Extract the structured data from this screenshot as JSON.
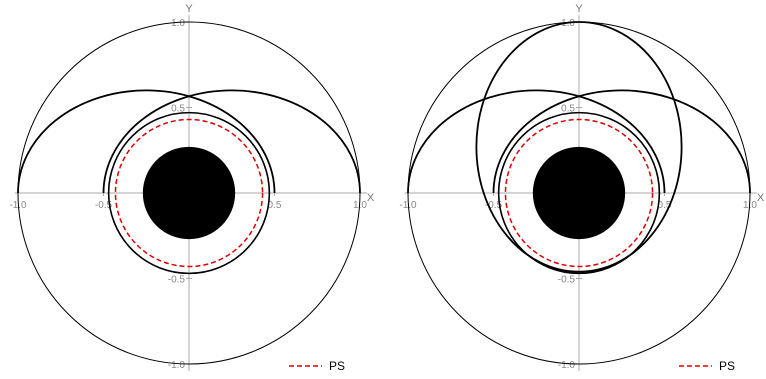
{
  "panels": [
    {
      "id": "left",
      "x_axis_label": "X",
      "y_axis_label": "Y",
      "x_ticks": [
        "-1.0",
        "-0.5",
        "0.5",
        "1.0"
      ],
      "y_ticks": [
        "1.0",
        "0.5",
        "-0.5",
        "-1.0"
      ],
      "x_tick_values": [
        -1,
        -0.5,
        0.5,
        1
      ],
      "y_tick_values": [
        1,
        0.5,
        -0.5,
        -1
      ],
      "legend": "PS",
      "boundary_circle_radius": 1.0,
      "black_disk_radius": 0.27,
      "ps_radius": 0.43,
      "inner_orbit_radius": 0.47,
      "arcs": [
        {
          "name": "arc-1",
          "cx": -0.25,
          "cy": 0,
          "rx": 0.75,
          "ry": 0.6
        },
        {
          "name": "arc-2",
          "cx": 0.25,
          "cy": 0,
          "rx": 0.75,
          "ry": 0.6
        }
      ],
      "vertical_ellipse": null
    },
    {
      "id": "right",
      "x_axis_label": "X",
      "y_axis_label": "Y",
      "x_ticks": [
        "-1.0",
        "-0.5",
        "0.5",
        "1.0"
      ],
      "y_ticks": [
        "1.0",
        "0.5",
        "-0.5",
        "-1.0"
      ],
      "x_tick_values": [
        -1,
        -0.5,
        0.5,
        1
      ],
      "y_tick_values": [
        1,
        0.5,
        -0.5,
        -1
      ],
      "legend": "PS",
      "boundary_circle_radius": 1.0,
      "black_disk_radius": 0.27,
      "ps_radius": 0.43,
      "inner_orbit_radius": 0.47,
      "arcs": [
        {
          "name": "arc-1",
          "cx": -0.25,
          "cy": 0,
          "rx": 0.75,
          "ry": 0.6
        },
        {
          "name": "arc-2",
          "cx": 0.25,
          "cy": 0,
          "rx": 0.75,
          "ry": 0.6
        }
      ],
      "vertical_ellipse": {
        "cx": 0,
        "cy": 0.27,
        "rx": 0.6,
        "ry": 0.73
      }
    }
  ],
  "colors": {
    "curve": "#000000",
    "axis": "#aaaaaa",
    "ps": "#dd0000",
    "disk": "#000000"
  }
}
